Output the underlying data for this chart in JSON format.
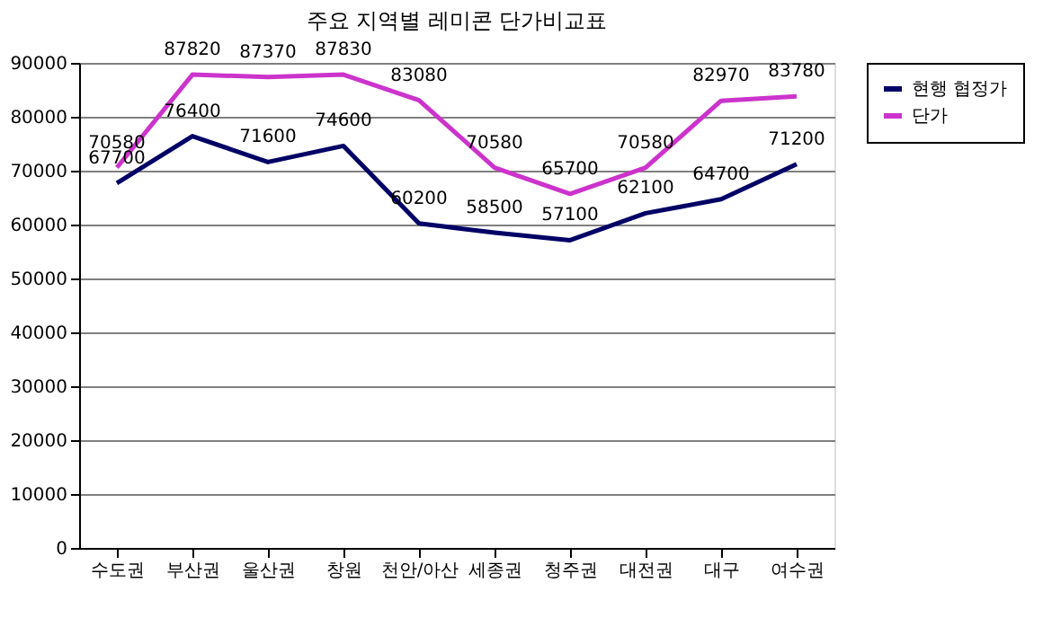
{
  "chart_data": {
    "type": "line",
    "title": "주요 지역별 레미콘 단가비교표",
    "categories": [
      "수도권",
      "부산권",
      "울산권",
      "창원",
      "천안/아산",
      "세종권",
      "청주권",
      "대전권",
      "대구",
      "여수권"
    ],
    "series": [
      {
        "name": "현행 협정가",
        "color": "#000066",
        "values": [
          67700,
          76400,
          71600,
          74600,
          60200,
          58500,
          57100,
          62100,
          64700,
          71200
        ]
      },
      {
        "name": "단가",
        "color": "#cc33cc",
        "values": [
          70580,
          87820,
          87370,
          87830,
          83080,
          70580,
          65700,
          70580,
          82970,
          83780
        ]
      }
    ],
    "ylim": [
      0,
      90000
    ],
    "yticks": [
      0,
      10000,
      20000,
      30000,
      40000,
      50000,
      60000,
      70000,
      80000,
      90000
    ],
    "grid": "y",
    "legend": "right",
    "marker": "none",
    "data_labels": true
  }
}
